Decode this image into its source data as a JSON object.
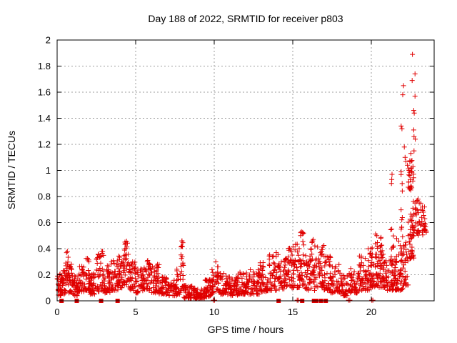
{
  "chart_data": {
    "type": "scatter",
    "title": "Day 188 of 2022, SRMTID for receiver p803",
    "xlabel": "GPS time / hours",
    "ylabel": "SRMTID / TECUs",
    "xlim": [
      0,
      24
    ],
    "ylim": [
      0,
      2
    ],
    "xticks": [
      [
        0,
        "0"
      ],
      [
        5,
        "5"
      ],
      [
        10,
        "10"
      ],
      [
        15,
        "15"
      ],
      [
        20,
        "20"
      ]
    ],
    "yticks": [
      [
        0,
        "0"
      ],
      [
        0.2,
        "0.2"
      ],
      [
        0.4,
        "0.4"
      ],
      [
        0.6,
        "0.6"
      ],
      [
        0.8,
        "0.8"
      ],
      [
        1,
        "1"
      ],
      [
        1.2,
        "1.2"
      ],
      [
        1.4,
        "1.4"
      ],
      [
        1.6,
        "1.6"
      ],
      [
        1.8,
        "1.8"
      ],
      [
        2,
        "2"
      ]
    ],
    "grid": true,
    "grid_style": "dashed",
    "legend_position": "none",
    "marker": "plus",
    "marker_size": 7,
    "colors": {
      "points": "#e00000",
      "squares": "#e00000",
      "grid": "#9e9e9e",
      "axis": "#000000",
      "background": "#ffffff"
    },
    "series_name": "SRMTID",
    "density_bands": [
      [
        0.0,
        0.3,
        0.04,
        0.22,
        30
      ],
      [
        0.3,
        0.55,
        0.05,
        0.24,
        25
      ],
      [
        0.55,
        0.75,
        0.12,
        0.38,
        18
      ],
      [
        0.75,
        1.0,
        0.06,
        0.28,
        28
      ],
      [
        1.0,
        1.3,
        0.04,
        0.2,
        30
      ],
      [
        1.3,
        1.7,
        0.07,
        0.27,
        35
      ],
      [
        1.7,
        2.1,
        0.08,
        0.33,
        40
      ],
      [
        2.1,
        2.5,
        0.05,
        0.22,
        35
      ],
      [
        2.5,
        3.0,
        0.07,
        0.38,
        45
      ],
      [
        3.0,
        3.4,
        0.06,
        0.28,
        35
      ],
      [
        3.4,
        3.9,
        0.08,
        0.31,
        40
      ],
      [
        3.9,
        4.2,
        0.1,
        0.36,
        30
      ],
      [
        4.2,
        4.55,
        0.12,
        0.46,
        35
      ],
      [
        4.55,
        5.0,
        0.08,
        0.3,
        40
      ],
      [
        5.0,
        5.5,
        0.06,
        0.25,
        40
      ],
      [
        5.5,
        6.0,
        0.08,
        0.32,
        40
      ],
      [
        6.0,
        6.5,
        0.06,
        0.28,
        40
      ],
      [
        6.5,
        7.0,
        0.05,
        0.2,
        40
      ],
      [
        7.0,
        7.6,
        0.04,
        0.16,
        45
      ],
      [
        7.6,
        7.85,
        0.05,
        0.25,
        20
      ],
      [
        7.85,
        8.05,
        0.08,
        0.46,
        22
      ],
      [
        8.05,
        8.6,
        0.02,
        0.12,
        45
      ],
      [
        8.6,
        9.4,
        0.02,
        0.1,
        60
      ],
      [
        9.4,
        9.85,
        0.03,
        0.17,
        40
      ],
      [
        9.85,
        10.25,
        0.06,
        0.3,
        35
      ],
      [
        10.25,
        10.8,
        0.05,
        0.22,
        45
      ],
      [
        10.8,
        11.5,
        0.04,
        0.2,
        55
      ],
      [
        11.5,
        12.2,
        0.05,
        0.22,
        55
      ],
      [
        12.2,
        12.9,
        0.05,
        0.24,
        55
      ],
      [
        12.9,
        13.5,
        0.07,
        0.3,
        45
      ],
      [
        13.5,
        14.1,
        0.08,
        0.36,
        45
      ],
      [
        14.1,
        14.65,
        0.09,
        0.33,
        45
      ],
      [
        14.65,
        15.1,
        0.1,
        0.43,
        40
      ],
      [
        15.1,
        15.45,
        0.1,
        0.45,
        30
      ],
      [
        15.45,
        15.75,
        0.12,
        0.53,
        28
      ],
      [
        15.75,
        16.1,
        0.08,
        0.35,
        30
      ],
      [
        16.1,
        16.5,
        0.08,
        0.47,
        35
      ],
      [
        16.5,
        17.0,
        0.1,
        0.44,
        40
      ],
      [
        17.0,
        17.4,
        0.08,
        0.35,
        35
      ],
      [
        17.4,
        18.0,
        0.06,
        0.28,
        45
      ],
      [
        18.0,
        18.6,
        0.04,
        0.22,
        45
      ],
      [
        18.6,
        19.2,
        0.06,
        0.26,
        45
      ],
      [
        19.2,
        19.9,
        0.08,
        0.35,
        55
      ],
      [
        19.9,
        20.4,
        0.1,
        0.42,
        45
      ],
      [
        20.25,
        20.45,
        0.2,
        0.52,
        12
      ],
      [
        20.4,
        20.9,
        0.1,
        0.38,
        45
      ],
      [
        20.55,
        20.7,
        0.25,
        0.5,
        8
      ],
      [
        20.9,
        21.6,
        0.08,
        0.32,
        60
      ],
      [
        21.2,
        21.45,
        0.3,
        0.55,
        10
      ],
      [
        21.6,
        22.0,
        0.08,
        0.5,
        40
      ],
      [
        21.85,
        22.0,
        0.3,
        0.98,
        14
      ],
      [
        22.0,
        22.35,
        0.12,
        0.45,
        30
      ],
      [
        22.3,
        22.75,
        0.32,
        0.62,
        30
      ],
      [
        22.35,
        22.7,
        0.85,
        1.08,
        26
      ],
      [
        22.45,
        23.3,
        0.5,
        0.8,
        40
      ],
      [
        23.25,
        23.5,
        0.52,
        0.72,
        12
      ]
    ],
    "outlier_points": [
      [
        22.62,
        1.89
      ],
      [
        22.78,
        1.74
      ],
      [
        22.6,
        1.69
      ],
      [
        22.05,
        1.65
      ],
      [
        22.0,
        1.58
      ],
      [
        22.78,
        1.57
      ],
      [
        22.7,
        1.46
      ],
      [
        22.73,
        1.44
      ],
      [
        21.9,
        1.34
      ],
      [
        21.95,
        1.32
      ],
      [
        22.7,
        1.31
      ],
      [
        22.72,
        1.26
      ],
      [
        22.8,
        1.24
      ],
      [
        22.1,
        1.18
      ],
      [
        22.72,
        1.15
      ],
      [
        22.52,
        1.13
      ],
      [
        22.15,
        1.1
      ],
      [
        22.2,
        1.07
      ],
      [
        22.3,
        1.04
      ],
      [
        22.65,
        1.03
      ],
      [
        21.9,
        0.99
      ],
      [
        21.32,
        0.97
      ],
      [
        21.3,
        0.93
      ],
      [
        21.28,
        0.9
      ],
      [
        22.4,
        1.0
      ],
      [
        22.45,
        0.96
      ],
      [
        23.2,
        0.64
      ],
      [
        23.16,
        0.7
      ],
      [
        23.05,
        0.75
      ],
      [
        22.92,
        0.77
      ],
      [
        22.78,
        0.75
      ],
      [
        22.65,
        0.71
      ],
      [
        22.58,
        0.65
      ],
      [
        22.62,
        0.58
      ],
      [
        22.73,
        0.54
      ],
      [
        22.88,
        0.52
      ],
      [
        23.02,
        0.54
      ],
      [
        23.12,
        0.58
      ],
      [
        23.32,
        0.68
      ],
      [
        23.4,
        0.63
      ],
      [
        23.45,
        0.57
      ],
      [
        23.35,
        0.55
      ],
      [
        23.25,
        0.72
      ],
      [
        23.38,
        0.72
      ],
      [
        7.95,
        0.46
      ],
      [
        7.93,
        0.42
      ],
      [
        4.32,
        0.45
      ],
      [
        15.55,
        0.53
      ],
      [
        15.5,
        0.5
      ],
      [
        16.3,
        0.47
      ],
      [
        20.35,
        0.5
      ],
      [
        20.6,
        0.48
      ],
      [
        10.1,
        0.3
      ],
      [
        0.65,
        0.38
      ],
      [
        2.85,
        0.38
      ],
      [
        13.95,
        0.37
      ],
      [
        19.8,
        0.4
      ],
      [
        21.3,
        0.55
      ],
      [
        21.9,
        0.55
      ]
    ],
    "zero_square_xs": [
      0.28,
      1.25,
      2.8,
      3.85,
      14.1,
      15.6,
      16.35,
      16.5,
      16.8,
      17.1
    ],
    "near_zero_xs": [
      9.95,
      10.02,
      15.28,
      15.34,
      18.55,
      18.63,
      20.03,
      20.1
    ]
  }
}
